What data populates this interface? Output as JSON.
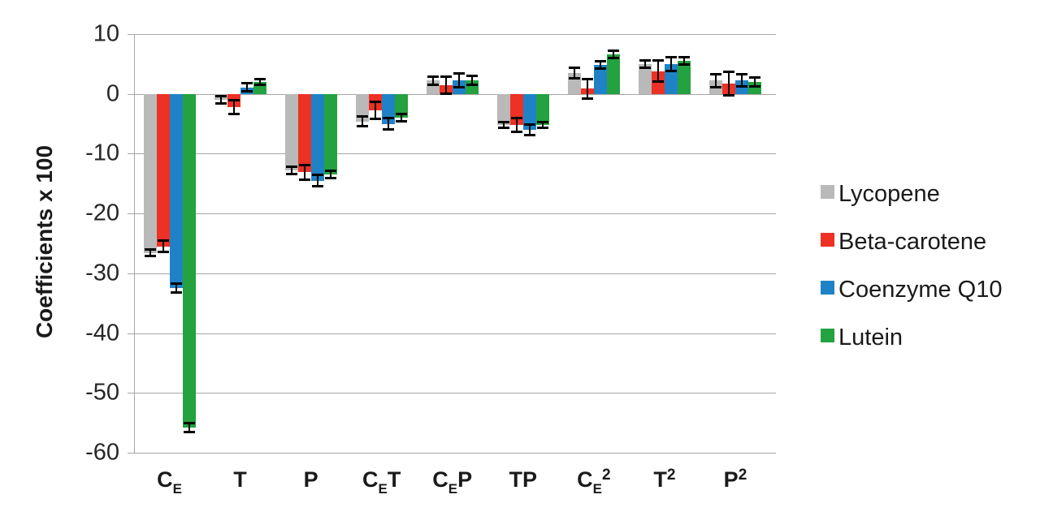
{
  "figure": {
    "background": "#ffffff",
    "axis_color": "#a6a6a6",
    "gridline_color": "#a6a6a6",
    "error_bar_color": "#000000"
  },
  "chart_data": {
    "type": "bar",
    "title": "",
    "xlabel": "",
    "ylabel": "Coefficients x 100",
    "ylim": [
      -60,
      10
    ],
    "yticks": [
      10,
      0,
      -10,
      -20,
      -30,
      -40,
      -50,
      -60
    ],
    "grid": true,
    "legend_position": "right",
    "error_bars": true,
    "categories": [
      {
        "key": "ce",
        "parts": [
          {
            "t": "C",
            "s": "base"
          },
          {
            "t": "E",
            "s": "sub"
          }
        ]
      },
      {
        "key": "t",
        "parts": [
          {
            "t": "T",
            "s": "base"
          }
        ]
      },
      {
        "key": "p",
        "parts": [
          {
            "t": "P",
            "s": "base"
          }
        ]
      },
      {
        "key": "cet",
        "parts": [
          {
            "t": "C",
            "s": "base"
          },
          {
            "t": "E",
            "s": "sub"
          },
          {
            "t": "T",
            "s": "base"
          }
        ]
      },
      {
        "key": "cep",
        "parts": [
          {
            "t": "C",
            "s": "base"
          },
          {
            "t": "E",
            "s": "sub"
          },
          {
            "t": "P",
            "s": "base"
          }
        ]
      },
      {
        "key": "tp",
        "parts": [
          {
            "t": "TP",
            "s": "base"
          }
        ]
      },
      {
        "key": "ce2",
        "parts": [
          {
            "t": "C",
            "s": "base"
          },
          {
            "t": "E",
            "s": "sub"
          },
          {
            "t": "2",
            "s": "sup"
          }
        ]
      },
      {
        "key": "t2",
        "parts": [
          {
            "t": "T",
            "s": "base"
          },
          {
            "t": "2",
            "s": "sup"
          }
        ]
      },
      {
        "key": "p2",
        "parts": [
          {
            "t": "P",
            "s": "base"
          },
          {
            "t": "2",
            "s": "sup"
          }
        ]
      }
    ],
    "series": [
      {
        "name": "Lycopene",
        "color": "#b9b9b9",
        "values": [
          -26.6,
          -1.0,
          -12.8,
          -4.6,
          2.2,
          -5.2,
          3.5,
          5.0,
          2.2
        ],
        "errors": [
          0.6,
          0.7,
          0.7,
          0.9,
          0.7,
          0.6,
          1.0,
          0.7,
          1.2
        ]
      },
      {
        "name": "Beta-carotene",
        "color": "#ed3124",
        "values": [
          -25.5,
          -2.2,
          -13.1,
          -2.8,
          1.5,
          -5.2,
          0.9,
          3.8,
          1.7
        ],
        "errors": [
          1.0,
          1.2,
          1.3,
          1.5,
          1.5,
          1.2,
          1.7,
          1.8,
          2.0
        ]
      },
      {
        "name": "Coenzyme Q10",
        "color": "#1f82c6",
        "values": [
          -32.5,
          1.1,
          -14.5,
          -5.0,
          2.3,
          -6.0,
          4.8,
          5.0,
          2.3
        ],
        "errors": [
          0.8,
          0.7,
          1.0,
          1.0,
          1.2,
          1.0,
          0.7,
          1.2,
          1.1
        ]
      },
      {
        "name": "Lutein",
        "color": "#23a23f",
        "values": [
          -55.8,
          2.0,
          -13.5,
          -4.0,
          2.3,
          -5.2,
          6.6,
          5.5,
          2.0
        ],
        "errors": [
          0.8,
          0.6,
          0.7,
          0.7,
          0.8,
          0.6,
          0.7,
          0.7,
          0.8
        ]
      }
    ]
  }
}
